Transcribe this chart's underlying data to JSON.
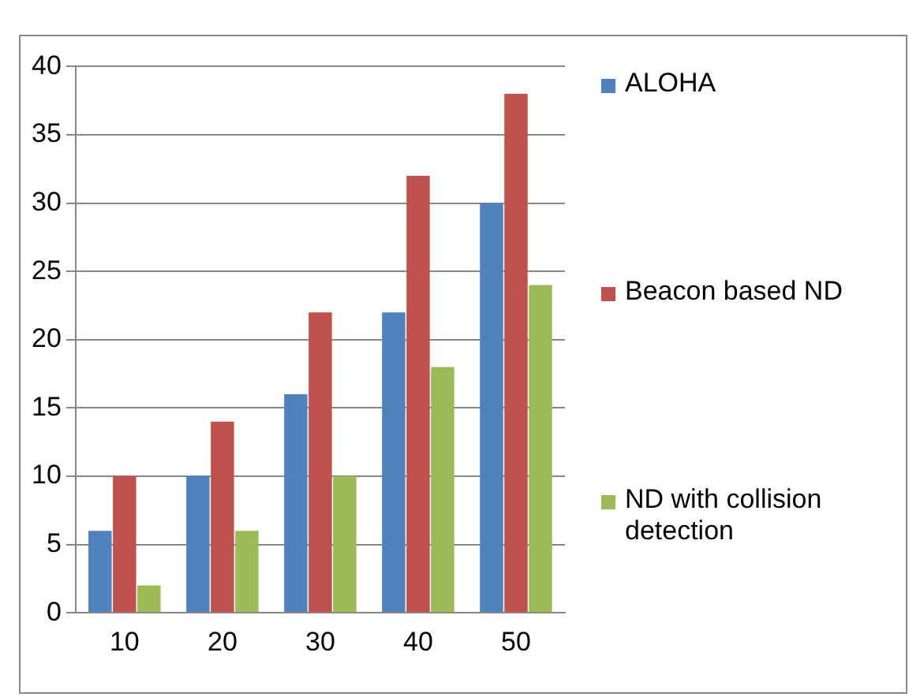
{
  "chart_data": {
    "type": "bar",
    "categories": [
      "10",
      "20",
      "30",
      "40",
      "50"
    ],
    "series": [
      {
        "name": "ALOHA",
        "color": "#4f81bd",
        "values": [
          6,
          10,
          16,
          22,
          30
        ]
      },
      {
        "name": "Beacon based ND",
        "color": "#c0504d",
        "values": [
          10,
          14,
          22,
          32,
          38
        ]
      },
      {
        "name": "ND with collision detection",
        "color": "#9bbb59",
        "values": [
          2,
          6,
          10,
          18,
          24
        ]
      }
    ],
    "ylim": [
      0,
      40
    ],
    "yticks": [
      0,
      5,
      10,
      15,
      20,
      25,
      30,
      35,
      40
    ],
    "grid": "y",
    "legend": "right"
  }
}
